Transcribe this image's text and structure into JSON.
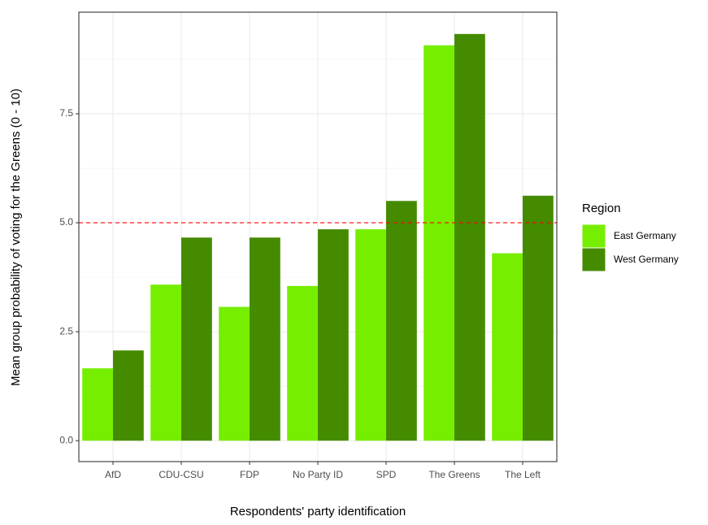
{
  "chart_data": {
    "type": "bar",
    "x_label": "Respondents' party identification",
    "y_label": "Mean group probability of voting for the Greens (0 - 10)",
    "categories": [
      "AfD",
      "CDU-CSU",
      "FDP",
      "No Party ID",
      "SPD",
      "The Greens",
      "The Left"
    ],
    "series": [
      {
        "name": "East Germany",
        "color": "#76ee00",
        "values": [
          1.66,
          3.58,
          3.07,
          3.55,
          4.85,
          9.07,
          4.3
        ]
      },
      {
        "name": "West Germany",
        "color": "#458b00",
        "values": [
          2.07,
          4.66,
          4.66,
          4.85,
          5.5,
          9.33,
          5.62
        ]
      }
    ],
    "legend_title": "Region",
    "ylim": [
      -0.48,
      9.83
    ],
    "yticks": [
      {
        "value": 0,
        "label": "0.0"
      },
      2.5,
      {
        "value": 5,
        "label": "5.0"
      },
      7.5
    ],
    "hline": {
      "value": 5,
      "color": "#ff0000"
    },
    "grid": true
  }
}
